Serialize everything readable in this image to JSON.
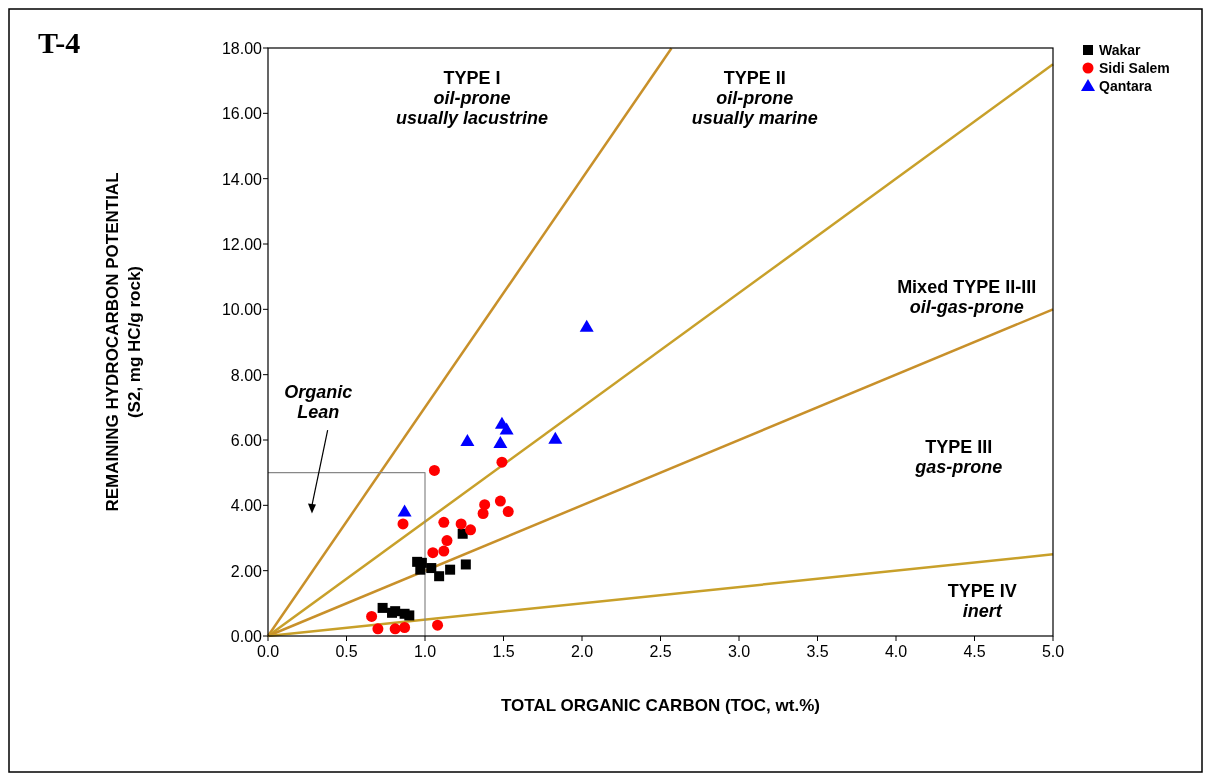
{
  "chart_data": {
    "type": "scatter",
    "title": "T-4",
    "xlabel": "TOTAL ORGANIC CARBON (TOC, wt.%)",
    "ylabel": "REMAINING HYDROCARBON POTENTIAL\n(S2, mg HC/g rock)",
    "xlim": [
      0,
      5
    ],
    "ylim": [
      0,
      18
    ],
    "xticks": [
      {
        "value": 0,
        "label": "0.0"
      },
      {
        "value": 0.5,
        "label": "0.5"
      },
      {
        "value": 1,
        "label": "1.0"
      },
      {
        "value": 1.5,
        "label": "1.5"
      },
      {
        "value": 2,
        "label": "2.0"
      },
      {
        "value": 2.5,
        "label": "2.5"
      },
      {
        "value": 3,
        "label": "3.0"
      },
      {
        "value": 3.5,
        "label": "3.5"
      },
      {
        "value": 4,
        "label": "4.0"
      },
      {
        "value": 4.5,
        "label": "4.5"
      },
      {
        "value": 5,
        "label": "5.0"
      }
    ],
    "yticks": [
      {
        "value": 0,
        "label": "0.00"
      },
      {
        "value": 2,
        "label": "2.00"
      },
      {
        "value": 4,
        "label": "4.00"
      },
      {
        "value": 6,
        "label": "6.00"
      },
      {
        "value": 8,
        "label": "8.00"
      },
      {
        "value": 10,
        "label": "10.00"
      },
      {
        "value": 12,
        "label": "12.00"
      },
      {
        "value": 14,
        "label": "14.00"
      },
      {
        "value": 16,
        "label": "16.00"
      },
      {
        "value": 18,
        "label": "18.00"
      }
    ],
    "legend": "top right",
    "grid": false,
    "series": [
      {
        "type": "line",
        "color": "#c8902a",
        "x": [
          0,
          2.57
        ],
        "values": [
          0,
          17.99
        ]
      },
      {
        "type": "line",
        "color": "#c8a02a",
        "x": [
          0,
          5
        ],
        "values": [
          0,
          17.5
        ]
      },
      {
        "type": "line",
        "color": "#c8902a",
        "x": [
          0,
          5
        ],
        "values": [
          0,
          10
        ]
      },
      {
        "type": "line",
        "color": "#c8a02a",
        "x": [
          0,
          5
        ],
        "values": [
          0,
          2.5
        ]
      },
      {
        "type": "line",
        "color": "#888888",
        "x": [
          0,
          1,
          1
        ],
        "values": [
          5,
          5,
          0
        ]
      },
      {
        "name": "Wakar",
        "color": "#000000",
        "marker": "square",
        "x": [
          0.73,
          0.79,
          0.81,
          0.87,
          0.9,
          0.95,
          0.98,
          0.97,
          1.04,
          1.09,
          1.16,
          1.26,
          1.24
        ],
        "values": [
          0.86,
          0.71,
          0.76,
          0.68,
          0.63,
          2.27,
          2.24,
          2.03,
          2.08,
          1.83,
          2.03,
          2.19,
          3.13
        ]
      },
      {
        "name": "Sidi Salem",
        "color": "#ff0000",
        "marker": "circle",
        "x": [
          0.66,
          0.7,
          0.81,
          0.87,
          1.08,
          0.86,
          1.06,
          1.49,
          1.12,
          1.14,
          1.12,
          1.05,
          1.23,
          1.29,
          1.38,
          1.37,
          1.48,
          1.53
        ],
        "values": [
          0.6,
          0.22,
          0.22,
          0.26,
          0.33,
          3.43,
          5.07,
          5.32,
          3.48,
          2.92,
          2.6,
          2.55,
          3.43,
          3.25,
          4.02,
          3.75,
          4.13,
          3.81
        ]
      },
      {
        "name": "Qantara",
        "color": "#0000ff",
        "marker": "triangle",
        "x": [
          0.87,
          1.27,
          1.49,
          1.52,
          1.48,
          1.83,
          2.03
        ],
        "values": [
          3.81,
          5.97,
          6.5,
          6.32,
          5.91,
          6.04,
          9.47
        ]
      }
    ],
    "annotations": [
      "TYPE I\noil-prone\nusually lacustrine",
      "TYPE II\noil-prone\nusually marine",
      "Mixed TYPE II-III\noil-gas-prone",
      "TYPE III\ngas-prone",
      "TYPE IV\ninert",
      "Organic\nLean"
    ]
  }
}
